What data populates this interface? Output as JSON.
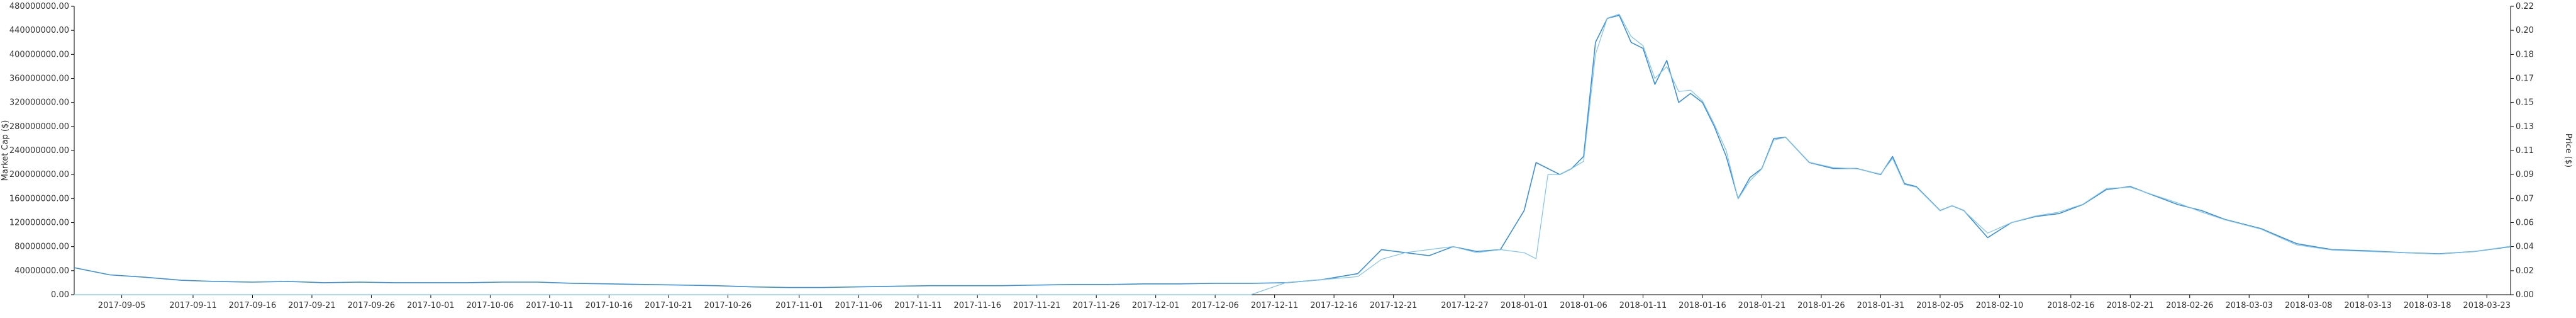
{
  "chart_data": {
    "type": "line",
    "title": "",
    "legend": "none",
    "grid": false,
    "x": [
      "2017-09-01",
      "2017-09-04",
      "2017-09-07",
      "2017-09-10",
      "2017-09-13",
      "2017-09-16",
      "2017-09-19",
      "2017-09-22",
      "2017-09-25",
      "2017-09-28",
      "2017-10-01",
      "2017-10-04",
      "2017-10-07",
      "2017-10-10",
      "2017-10-13",
      "2017-10-16",
      "2017-10-19",
      "2017-10-22",
      "2017-10-25",
      "2017-10-28",
      "2017-10-31",
      "2017-11-03",
      "2017-11-06",
      "2017-11-09",
      "2017-11-12",
      "2017-11-15",
      "2017-11-18",
      "2017-11-21",
      "2017-11-24",
      "2017-11-27",
      "2017-11-30",
      "2017-12-03",
      "2017-12-06",
      "2017-12-09",
      "2017-12-12",
      "2017-12-15",
      "2017-12-18",
      "2017-12-20",
      "2017-12-22",
      "2017-12-24",
      "2017-12-26",
      "2017-12-28",
      "2017-12-30",
      "2018-01-01",
      "2018-01-02",
      "2018-01-03",
      "2018-01-04",
      "2018-01-05",
      "2018-01-06",
      "2018-01-07",
      "2018-01-08",
      "2018-01-09",
      "2018-01-10",
      "2018-01-11",
      "2018-01-12",
      "2018-01-13",
      "2018-01-14",
      "2018-01-15",
      "2018-01-16",
      "2018-01-17",
      "2018-01-18",
      "2018-01-19",
      "2018-01-20",
      "2018-01-21",
      "2018-01-22",
      "2018-01-23",
      "2018-01-25",
      "2018-01-27",
      "2018-01-29",
      "2018-01-31",
      "2018-02-01",
      "2018-02-02",
      "2018-02-03",
      "2018-02-05",
      "2018-02-06",
      "2018-02-07",
      "2018-02-09",
      "2018-02-11",
      "2018-02-13",
      "2018-02-15",
      "2018-02-17",
      "2018-02-19",
      "2018-02-21",
      "2018-02-23",
      "2018-02-25",
      "2018-02-27",
      "2018-03-01",
      "2018-03-04",
      "2018-03-07",
      "2018-03-10",
      "2018-03-13",
      "2018-03-16",
      "2018-03-19",
      "2018-03-22",
      "2018-03-25"
    ],
    "x_ticks": [
      "2017-09-05",
      "2017-09-11",
      "2017-09-16",
      "2017-09-21",
      "2017-09-26",
      "2017-10-01",
      "2017-10-06",
      "2017-10-11",
      "2017-10-16",
      "2017-10-21",
      "2017-10-26",
      "2017-11-01",
      "2017-11-06",
      "2017-11-11",
      "2017-11-16",
      "2017-11-21",
      "2017-11-26",
      "2017-12-01",
      "2017-12-06",
      "2017-12-11",
      "2017-12-16",
      "2017-12-21",
      "2017-12-27",
      "2018-01-01",
      "2018-01-06",
      "2018-01-11",
      "2018-01-16",
      "2018-01-21",
      "2018-01-26",
      "2018-01-31",
      "2018-02-05",
      "2018-02-10",
      "2018-02-16",
      "2018-02-21",
      "2018-02-26",
      "2018-03-03",
      "2018-03-08",
      "2018-03-13",
      "2018-03-18",
      "2018-03-23"
    ],
    "y_left": {
      "label": "Market Cap ($)",
      "ylim": [
        0,
        480000000
      ],
      "ticks": [
        "0.00",
        "40000000.00",
        "80000000.00",
        "120000000.00",
        "160000000.00",
        "200000000.00",
        "240000000.00",
        "280000000.00",
        "320000000.00",
        "360000000.00",
        "400000000.00",
        "440000000.00",
        "480000000.00"
      ],
      "tick_values": [
        0,
        40000000,
        80000000,
        120000000,
        160000000,
        200000000,
        240000000,
        280000000,
        320000000,
        360000000,
        400000000,
        440000000,
        480000000
      ]
    },
    "y_right": {
      "label": "Price ($)",
      "ylim": [
        0,
        0.22
      ],
      "ticks": [
        "0.00",
        "0.02",
        "0.04",
        "0.06",
        "0.07",
        "0.09",
        "0.11",
        "0.13",
        "0.15",
        "0.17",
        "0.18",
        "0.20",
        "0.22"
      ],
      "tick_values": [
        0,
        0.0183,
        0.0367,
        0.055,
        0.0733,
        0.0917,
        0.11,
        0.1283,
        0.1467,
        0.165,
        0.1833,
        0.2017,
        0.22
      ]
    },
    "series": [
      {
        "axis": "left",
        "color": "#3a8fd6",
        "values": [
          45000000,
          33000000,
          29000000,
          24000000,
          22000000,
          21000000,
          22000000,
          20000000,
          21000000,
          20000000,
          20000000,
          20000000,
          21000000,
          21000000,
          19000000,
          18000000,
          17000000,
          16000000,
          15000000,
          13000000,
          12000000,
          12000000,
          13000000,
          14000000,
          15000000,
          15000000,
          15000000,
          16000000,
          17000000,
          17000000,
          18000000,
          18000000,
          19000000,
          19000000,
          20000000,
          25000000,
          35000000,
          75000000,
          70000000,
          65000000,
          80000000,
          72000000,
          75000000,
          140000000,
          220000000,
          210000000,
          200000000,
          210000000,
          230000000,
          420000000,
          460000000,
          465000000,
          420000000,
          410000000,
          350000000,
          390000000,
          320000000,
          335000000,
          320000000,
          280000000,
          230000000,
          160000000,
          195000000,
          210000000,
          260000000,
          262000000,
          220000000,
          210000000,
          210000000,
          200000000,
          230000000,
          185000000,
          180000000,
          140000000,
          148000000,
          140000000,
          95000000,
          120000000,
          130000000,
          135000000,
          150000000,
          175000000,
          180000000,
          165000000,
          150000000,
          140000000,
          125000000,
          110000000,
          85000000,
          75000000,
          73000000,
          70000000,
          68000000,
          72000000,
          80000000
        ]
      },
      {
        "axis": "right",
        "color": "#7ec3ea",
        "values": [
          0.0,
          0.0,
          0.0,
          0.0,
          0.0,
          0.0,
          0.0,
          0.0,
          0.0,
          0.0,
          0.0,
          0.0,
          0.0,
          0.0,
          0.0,
          0.0,
          0.0,
          0.0,
          0.0,
          0.0,
          0.0,
          0.0,
          0.0,
          0.0,
          0.0,
          0.0,
          0.0,
          0.0,
          0.0,
          0.0,
          0.0,
          0.0,
          0.0,
          0.0,
          0.0093,
          0.0115,
          0.0138,
          0.027,
          0.0321,
          0.0344,
          0.0367,
          0.0321,
          0.0344,
          0.0321,
          0.0275,
          0.0917,
          0.0917,
          0.0963,
          0.1017,
          0.1833,
          0.211,
          0.214,
          0.197,
          0.19,
          0.165,
          0.174,
          0.155,
          0.156,
          0.148,
          0.13,
          0.11,
          0.073,
          0.087,
          0.096,
          0.118,
          0.12,
          0.101,
          0.097,
          0.096,
          0.092,
          0.104,
          0.084,
          0.082,
          0.064,
          0.068,
          0.064,
          0.047,
          0.055,
          0.06,
          0.063,
          0.069,
          0.081,
          0.082,
          0.076,
          0.07,
          0.063,
          0.057,
          0.05,
          0.038,
          0.034,
          0.033,
          0.032,
          0.031,
          0.033,
          0.037
        ]
      }
    ]
  }
}
